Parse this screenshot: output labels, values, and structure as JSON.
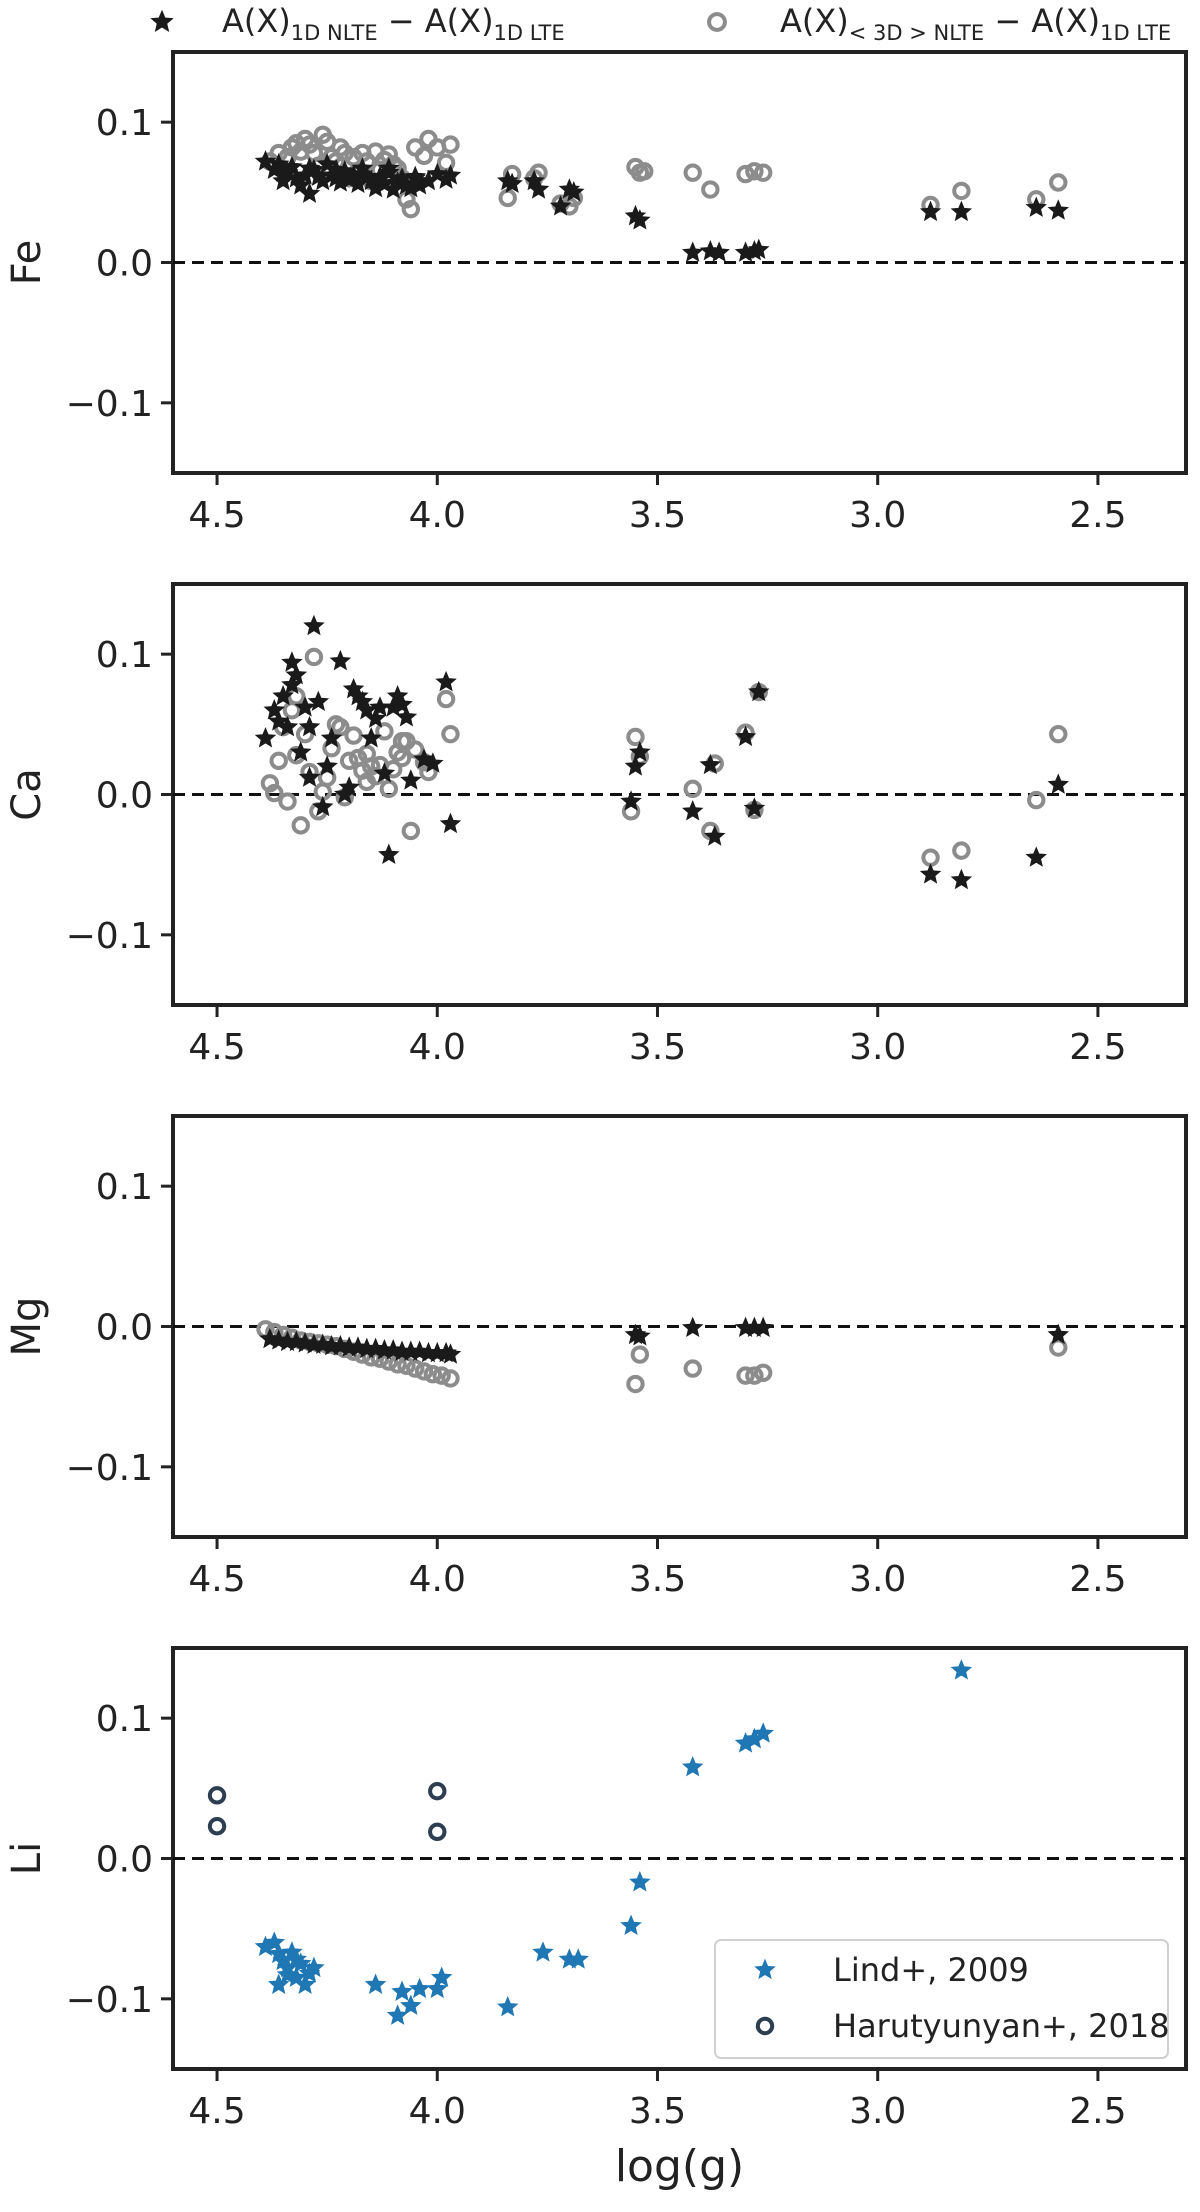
{
  "legend_top": {
    "entries": [
      {
        "marker": "star",
        "color": "#1a1a1a",
        "label_main": "A(X)",
        "label_sub": "1D NLTE",
        "label_mid": " − A(X)",
        "label_sub2": "1D LTE"
      },
      {
        "marker": "open-circle",
        "color": "#8c8c8c",
        "label_main": "A(X)",
        "label_sub": "< 3D > NLTE",
        "label_mid": " − A(X)",
        "label_sub2": "1D LTE"
      }
    ]
  },
  "chart_data": [
    {
      "type": "scatter",
      "ylabel": "Fe",
      "xlabel": "",
      "xlim": [
        4.6,
        2.3
      ],
      "ylim": [
        -0.15,
        0.15
      ],
      "xticks": [
        "4.5",
        "4.0",
        "3.5",
        "3.0",
        "2.5"
      ],
      "yticks": [
        "0.1",
        "0.0",
        "−0.1"
      ],
      "reference_line": 0.0,
      "series": [
        {
          "marker": "star",
          "color": "#1a1a1a",
          "x": [
            4.39,
            4.37,
            4.36,
            4.35,
            4.34,
            4.33,
            4.32,
            4.31,
            4.3,
            4.29,
            4.28,
            4.27,
            4.26,
            4.25,
            4.24,
            4.23,
            4.22,
            4.21,
            4.2,
            4.19,
            4.18,
            4.17,
            4.16,
            4.15,
            4.14,
            4.13,
            4.12,
            4.11,
            4.1,
            4.09,
            4.08,
            4.07,
            4.06,
            4.05,
            4.04,
            4.02,
            4.0,
            3.98,
            3.97,
            3.36,
            3.84,
            3.83,
            3.78,
            3.77,
            3.72,
            3.7,
            3.69,
            3.55,
            3.54,
            3.42,
            3.38,
            3.3,
            3.28,
            3.27,
            2.88,
            2.81,
            2.64,
            2.59,
            4.35,
            4.29,
            4.23,
            4.17,
            4.11,
            4.05
          ],
          "y": [
            0.072,
            0.066,
            0.07,
            0.058,
            0.064,
            0.068,
            0.06,
            0.055,
            0.062,
            0.049,
            0.066,
            0.061,
            0.058,
            0.07,
            0.062,
            0.06,
            0.057,
            0.065,
            0.059,
            0.062,
            0.056,
            0.063,
            0.061,
            0.058,
            0.053,
            0.061,
            0.056,
            0.064,
            0.052,
            0.057,
            0.06,
            0.055,
            0.053,
            0.061,
            0.055,
            0.058,
            0.063,
            0.059,
            0.062,
            0.007,
            0.058,
            0.056,
            0.058,
            0.052,
            0.04,
            0.052,
            0.05,
            0.033,
            0.03,
            0.007,
            0.008,
            0.007,
            0.008,
            0.009,
            0.036,
            0.036,
            0.039,
            0.037,
            0.064,
            0.067,
            0.066,
            0.067,
            0.067,
            0.06
          ]
        },
        {
          "marker": "open-circle",
          "color": "#8c8c8c",
          "x": [
            4.38,
            4.36,
            4.34,
            4.33,
            4.32,
            4.31,
            4.3,
            4.29,
            4.28,
            4.27,
            4.26,
            4.25,
            4.24,
            4.23,
            4.22,
            4.21,
            4.2,
            4.19,
            4.18,
            4.17,
            4.16,
            4.15,
            4.14,
            4.13,
            4.12,
            4.11,
            4.1,
            4.09,
            4.08,
            4.07,
            4.06,
            4.05,
            4.03,
            4.02,
            4.0,
            3.98,
            3.97,
            3.84,
            3.83,
            3.78,
            3.77,
            3.72,
            3.7,
            3.69,
            3.55,
            3.54,
            3.53,
            3.42,
            3.38,
            3.3,
            3.28,
            3.26,
            2.88,
            2.81,
            2.64,
            2.59
          ],
          "y": [
            0.072,
            0.078,
            0.075,
            0.082,
            0.085,
            0.079,
            0.088,
            0.084,
            0.078,
            0.069,
            0.091,
            0.086,
            0.075,
            0.072,
            0.082,
            0.078,
            0.06,
            0.075,
            0.065,
            0.078,
            0.072,
            0.058,
            0.079,
            0.066,
            0.073,
            0.077,
            0.07,
            0.067,
            0.06,
            0.045,
            0.038,
            0.082,
            0.076,
            0.088,
            0.082,
            0.071,
            0.084,
            0.046,
            0.063,
            0.06,
            0.064,
            0.042,
            0.04,
            0.046,
            0.068,
            0.064,
            0.065,
            0.064,
            0.052,
            0.063,
            0.065,
            0.064,
            0.041,
            0.051,
            0.045,
            0.057
          ]
        }
      ]
    },
    {
      "type": "scatter",
      "ylabel": "Ca",
      "xlabel": "",
      "xlim": [
        4.6,
        2.3
      ],
      "ylim": [
        -0.15,
        0.15
      ],
      "xticks": [
        "4.5",
        "4.0",
        "3.5",
        "3.0",
        "2.5"
      ],
      "yticks": [
        "0.1",
        "0.0",
        "−0.1"
      ],
      "reference_line": 0.0,
      "series": [
        {
          "marker": "star",
          "color": "#1a1a1a",
          "x": [
            4.39,
            4.37,
            4.36,
            4.35,
            4.34,
            4.33,
            4.32,
            4.31,
            4.3,
            4.29,
            4.28,
            4.27,
            4.26,
            4.25,
            4.24,
            4.22,
            4.2,
            4.19,
            4.18,
            4.17,
            4.16,
            4.15,
            4.14,
            4.13,
            4.12,
            4.11,
            4.1,
            4.09,
            4.08,
            4.07,
            4.06,
            4.03,
            4.01,
            3.98,
            3.97,
            3.55,
            3.54,
            3.56,
            3.42,
            3.38,
            3.37,
            3.3,
            3.28,
            3.27,
            2.88,
            2.81,
            2.64,
            2.59,
            4.33,
            4.29,
            4.21
          ],
          "y": [
            0.04,
            0.06,
            0.052,
            0.07,
            0.048,
            0.094,
            0.085,
            0.03,
            0.062,
            0.012,
            0.12,
            0.066,
            -0.009,
            0.02,
            0.04,
            0.095,
            0.005,
            0.075,
            0.07,
            0.066,
            0.06,
            0.04,
            0.054,
            0.062,
            0.015,
            -0.043,
            0.062,
            0.07,
            0.064,
            0.055,
            0.01,
            0.025,
            0.022,
            0.08,
            -0.021,
            0.02,
            0.03,
            -0.005,
            -0.012,
            0.021,
            -0.03,
            0.041,
            -0.01,
            0.073,
            -0.057,
            -0.061,
            -0.045,
            0.007,
            0.078,
            0.048,
            0.0
          ]
        },
        {
          "marker": "open-circle",
          "color": "#8c8c8c",
          "x": [
            4.38,
            4.37,
            4.36,
            4.35,
            4.34,
            4.33,
            4.32,
            4.31,
            4.3,
            4.29,
            4.28,
            4.27,
            4.26,
            4.25,
            4.23,
            4.22,
            4.21,
            4.2,
            4.19,
            4.18,
            4.17,
            4.16,
            4.15,
            4.14,
            4.13,
            4.12,
            4.11,
            4.1,
            4.09,
            4.08,
            4.07,
            4.06,
            4.05,
            4.03,
            4.02,
            3.98,
            3.97,
            3.55,
            3.54,
            3.56,
            3.42,
            3.38,
            3.37,
            3.3,
            3.28,
            3.27,
            2.88,
            2.81,
            2.64,
            2.59,
            4.32,
            4.24,
            4.16,
            4.08
          ],
          "y": [
            0.008,
            0.001,
            0.024,
            0.048,
            -0.005,
            0.06,
            0.07,
            -0.022,
            0.043,
            0.016,
            0.098,
            -0.012,
            0.002,
            0.012,
            0.05,
            0.048,
            -0.002,
            0.024,
            0.042,
            0.026,
            0.017,
            0.009,
            0.02,
            0.013,
            0.021,
            0.045,
            0.004,
            0.018,
            0.03,
            0.026,
            0.038,
            -0.026,
            0.032,
            0.023,
            0.016,
            0.068,
            0.043,
            0.041,
            0.027,
            -0.012,
            0.004,
            -0.026,
            0.022,
            0.044,
            -0.011,
            0.073,
            -0.045,
            -0.04,
            -0.004,
            0.043,
            0.028,
            0.033,
            0.029,
            0.038
          ]
        }
      ]
    },
    {
      "type": "scatter",
      "ylabel": "Mg",
      "xlabel": "",
      "xlim": [
        4.6,
        2.3
      ],
      "ylim": [
        -0.15,
        0.15
      ],
      "xticks": [
        "4.5",
        "4.0",
        "3.5",
        "3.0",
        "2.5"
      ],
      "yticks": [
        "0.1",
        "0.0",
        "−0.1"
      ],
      "reference_line": 0.0,
      "series": [
        {
          "marker": "star",
          "color": "#1a1a1a",
          "x": [
            4.38,
            4.36,
            4.34,
            4.32,
            4.3,
            4.28,
            4.26,
            4.24,
            4.22,
            4.2,
            4.18,
            4.16,
            4.14,
            4.12,
            4.1,
            4.08,
            4.06,
            4.04,
            4.02,
            4.0,
            3.98,
            3.97,
            3.55,
            3.54,
            3.42,
            3.3,
            3.28,
            3.26,
            2.59
          ],
          "y": [
            -0.009,
            -0.01,
            -0.011,
            -0.011,
            -0.012,
            -0.013,
            -0.013,
            -0.014,
            -0.014,
            -0.015,
            -0.015,
            -0.016,
            -0.016,
            -0.017,
            -0.017,
            -0.018,
            -0.018,
            -0.018,
            -0.019,
            -0.019,
            -0.019,
            -0.02,
            -0.006,
            -0.007,
            -0.001,
            -0.001,
            -0.001,
            -0.001,
            -0.006
          ]
        },
        {
          "marker": "open-circle",
          "color": "#8c8c8c",
          "x": [
            4.39,
            4.37,
            4.35,
            4.33,
            4.31,
            4.29,
            4.27,
            4.25,
            4.23,
            4.21,
            4.19,
            4.17,
            4.15,
            4.13,
            4.11,
            4.09,
            4.07,
            4.05,
            4.03,
            4.01,
            3.99,
            3.97,
            3.55,
            3.54,
            3.42,
            3.3,
            3.28,
            3.26,
            2.59
          ],
          "y": [
            -0.002,
            -0.004,
            -0.006,
            -0.008,
            -0.01,
            -0.011,
            -0.012,
            -0.013,
            -0.014,
            -0.016,
            -0.018,
            -0.02,
            -0.022,
            -0.023,
            -0.025,
            -0.027,
            -0.028,
            -0.03,
            -0.032,
            -0.034,
            -0.035,
            -0.037,
            -0.041,
            -0.02,
            -0.03,
            -0.035,
            -0.035,
            -0.033,
            -0.015
          ]
        }
      ]
    },
    {
      "type": "scatter",
      "ylabel": "Li",
      "xlabel": "log(g)",
      "xlim": [
        4.6,
        2.3
      ],
      "ylim": [
        -0.15,
        0.15
      ],
      "xticks": [
        "4.5",
        "4.0",
        "3.5",
        "3.0",
        "2.5"
      ],
      "yticks": [
        "0.1",
        "0.0",
        "−0.1"
      ],
      "reference_line": 0.0,
      "legend": {
        "placement": "lower-right"
      },
      "series": [
        {
          "name": "Lind+, 2009",
          "marker": "star",
          "color": "#1f77b4",
          "x": [
            4.39,
            4.37,
            4.36,
            4.35,
            4.34,
            4.33,
            4.32,
            4.31,
            4.3,
            4.29,
            4.28,
            4.36,
            4.34,
            4.32,
            4.14,
            4.09,
            4.08,
            4.06,
            4.04,
            4.0,
            3.99,
            3.84,
            3.76,
            3.7,
            3.68,
            3.56,
            3.54,
            3.42,
            3.3,
            3.28,
            3.26,
            2.81
          ],
          "y": [
            -0.063,
            -0.06,
            -0.068,
            -0.073,
            -0.078,
            -0.067,
            -0.085,
            -0.075,
            -0.09,
            -0.082,
            -0.078,
            -0.09,
            -0.083,
            -0.072,
            -0.09,
            -0.112,
            -0.095,
            -0.105,
            -0.093,
            -0.093,
            -0.085,
            -0.106,
            -0.067,
            -0.072,
            -0.072,
            -0.048,
            -0.017,
            0.065,
            0.082,
            0.085,
            0.089,
            0.134
          ]
        },
        {
          "name": "Harutyunyan+, 2018",
          "marker": "open-circle",
          "color": "#2c3e50",
          "x": [
            4.5,
            4.5,
            4.0,
            4.0
          ],
          "y": [
            0.045,
            0.023,
            0.048,
            0.019
          ]
        }
      ]
    }
  ]
}
